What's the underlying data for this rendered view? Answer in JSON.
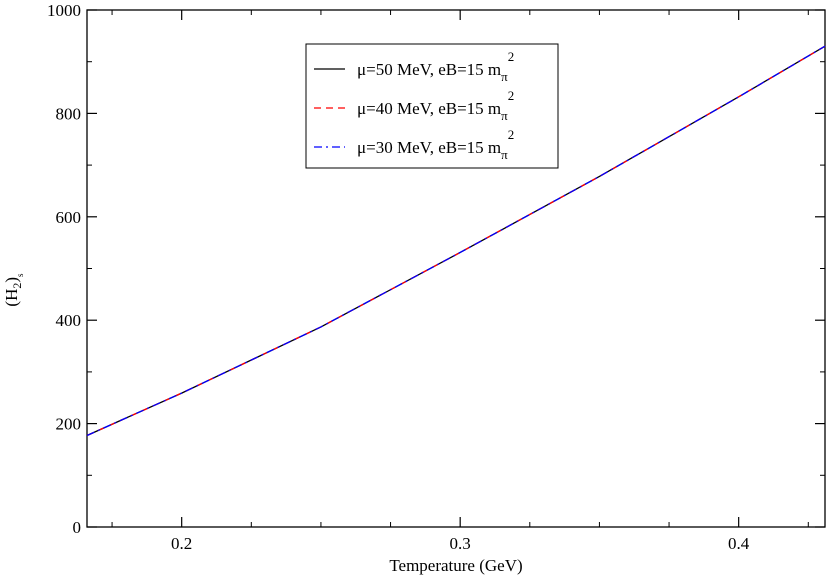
{
  "chart_data": {
    "type": "line",
    "xlabel": "Temperature (GeV)",
    "ylabel": "(H",
    "ylabel_sub": "2",
    "ylabel_close": ")",
    "ylabel_subsub": "s",
    "xlim": [
      0.166,
      0.431
    ],
    "ylim": [
      0,
      1000
    ],
    "x_ticks": [
      {
        "value": 0.2,
        "label": "0.2"
      },
      {
        "value": 0.3,
        "label": "0.3"
      },
      {
        "value": 0.4,
        "label": "0.4"
      }
    ],
    "x_minor_ticks": [
      0.175,
      0.225,
      0.25,
      0.275,
      0.325,
      0.35,
      0.375,
      0.425
    ],
    "y_ticks": [
      {
        "value": 0,
        "label": "0"
      },
      {
        "value": 200,
        "label": "200"
      },
      {
        "value": 400,
        "label": "400"
      },
      {
        "value": 600,
        "label": "600"
      },
      {
        "value": 800,
        "label": "800"
      },
      {
        "value": 1000,
        "label": "1000"
      }
    ],
    "y_minor_ticks": [
      100,
      300,
      500,
      700,
      900
    ],
    "grid": false,
    "legend_position": "top-center",
    "series": [
      {
        "name": "μ=50 MeV, eB=15 m",
        "name_sub": "π",
        "name_sup": "2",
        "color": "#000000",
        "dash": "solid",
        "x": [
          0.166,
          0.2,
          0.25,
          0.3,
          0.35,
          0.4,
          0.431
        ],
        "y": [
          177,
          259,
          387,
          531,
          678,
          832,
          930
        ]
      },
      {
        "name": "μ=40 MeV, eB=15 m",
        "name_sub": "π",
        "name_sup": "2",
        "color": "#ff0000",
        "dash": "dashed",
        "x": [
          0.166,
          0.2,
          0.25,
          0.3,
          0.35,
          0.4,
          0.431
        ],
        "y": [
          177,
          259,
          387,
          531,
          678,
          832,
          930
        ]
      },
      {
        "name": "μ=30 MeV, eB=15 m",
        "name_sub": "π",
        "name_sup": "2",
        "color": "#0000ff",
        "dash": "dashdot",
        "x": [
          0.166,
          0.2,
          0.25,
          0.3,
          0.35,
          0.4,
          0.431
        ],
        "y": [
          177,
          259,
          387,
          531,
          678,
          832,
          930
        ]
      }
    ]
  }
}
